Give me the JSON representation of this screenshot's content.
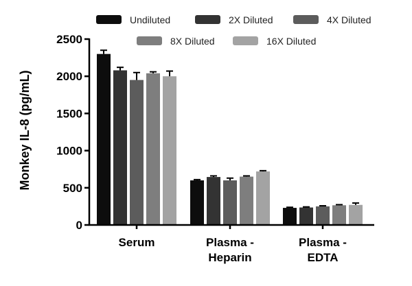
{
  "chart_data": {
    "type": "bar",
    "ylabel": "Monkey IL-8 (pg/mL)",
    "xlabel": "",
    "ylim": [
      0,
      2500
    ],
    "yticks": [
      0,
      500,
      1000,
      1500,
      2000,
      2500
    ],
    "categories": [
      {
        "lines": [
          "Serum"
        ]
      },
      {
        "lines": [
          "Plasma -",
          "Heparin"
        ]
      },
      {
        "lines": [
          "Plasma -",
          "EDTA"
        ]
      }
    ],
    "legend_position": "top",
    "series": [
      {
        "name": "Undiluted",
        "color": "#0d0d0d",
        "values": [
          2300,
          600,
          230
        ],
        "errors": [
          50,
          10,
          8
        ]
      },
      {
        "name": "2X Diluted",
        "color": "#333333",
        "values": [
          2080,
          645,
          235
        ],
        "errors": [
          40,
          15,
          8
        ]
      },
      {
        "name": "4X Diluted",
        "color": "#5c5c5c",
        "values": [
          1950,
          600,
          250
        ],
        "errors": [
          100,
          30,
          8
        ]
      },
      {
        "name": "8X Diluted",
        "color": "#7e7e7e",
        "values": [
          2040,
          650,
          265
        ],
        "errors": [
          20,
          10,
          8
        ]
      },
      {
        "name": "16X Diluted",
        "color": "#a3a3a3",
        "values": [
          2000,
          720,
          270
        ],
        "errors": [
          70,
          10,
          25
        ]
      }
    ]
  }
}
